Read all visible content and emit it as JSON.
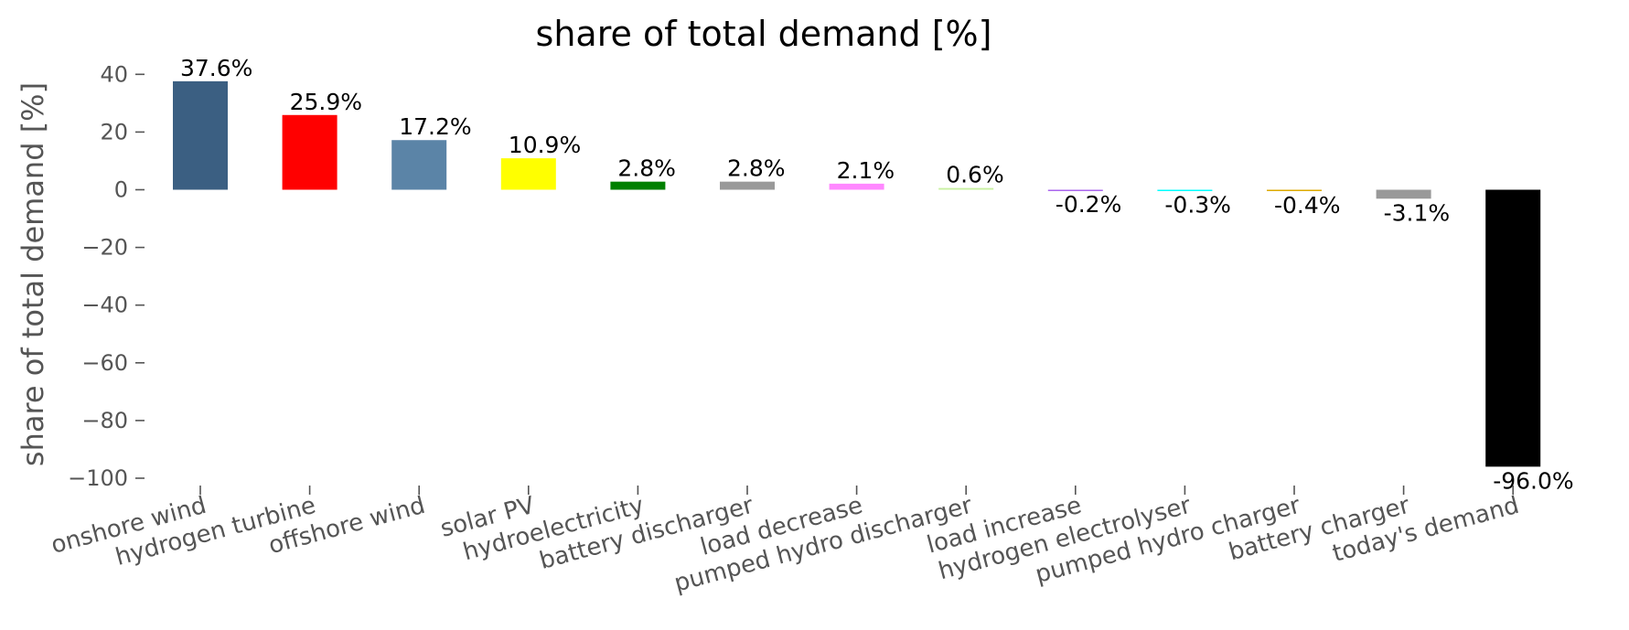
{
  "chart_data": {
    "type": "bar",
    "title": "share of total demand [%]",
    "xlabel": "",
    "ylabel": "share of total demand [%]",
    "ylim": [
      -100,
      40
    ],
    "yticks": [
      40,
      20,
      0,
      -20,
      -40,
      -60,
      -80,
      -100
    ],
    "grid": false,
    "categories": [
      "onshore wind",
      "hydrogen turbine",
      "offshore wind",
      "solar PV",
      "hydroelectricity",
      "battery discharger",
      "load decrease",
      "pumped hydro discharger",
      "load increase",
      "hydrogen electrolyser",
      "pumped hydro charger",
      "battery charger",
      "today's demand"
    ],
    "values": [
      37.6,
      25.9,
      17.2,
      10.9,
      2.8,
      2.8,
      2.1,
      0.6,
      -0.2,
      -0.3,
      -0.4,
      -3.1,
      -96.0
    ],
    "labels": [
      "37.6%",
      "25.9%",
      "17.2%",
      "10.9%",
      "2.8%",
      "2.8%",
      "2.1%",
      "0.6%",
      "-0.2%",
      "-0.3%",
      "-0.4%",
      "-3.1%",
      "-96.0%"
    ],
    "colors": [
      "#3b5f82",
      "#ff0000",
      "#5b84a7",
      "#ffff00",
      "#008000",
      "#999999",
      "#ff88ff",
      "#c8f0a0",
      "#aa66ee",
      "#00ffff",
      "#ddaa00",
      "#999999",
      "#000000"
    ]
  }
}
